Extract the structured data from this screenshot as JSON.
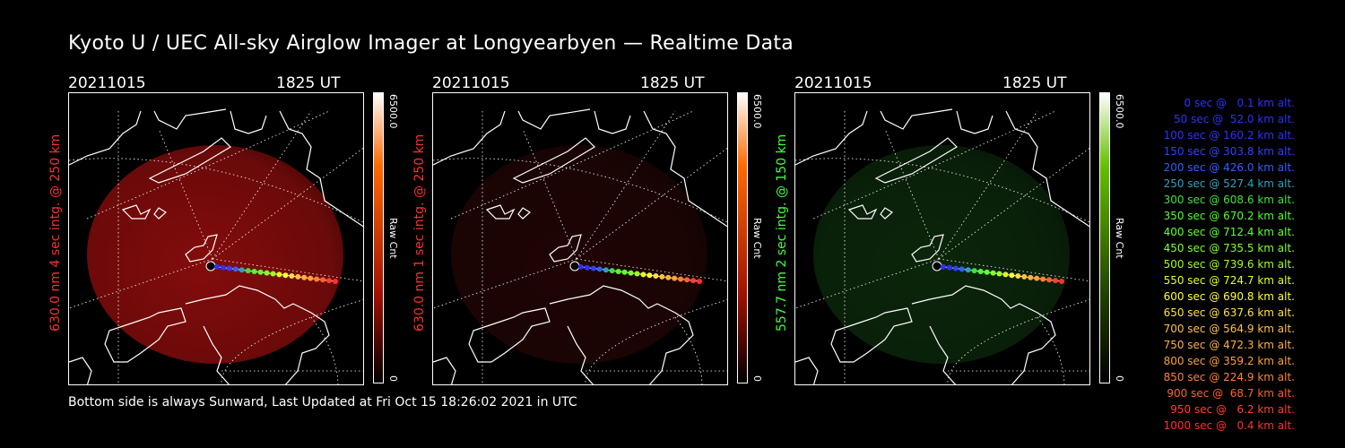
{
  "title": "Kyoto U / UEC All-sky Airglow Imager at Longyearbyen — Realtime Data",
  "footer": "Bottom side is always Sunward, Last Updated at Fri Oct 15 18:26:02 2021 in UTC",
  "panels": [
    {
      "date": "20211015",
      "time": "1825 UT",
      "ylabel": "630.0 nm 4 sec intg. @ 250 km",
      "label_color": "#ff3030",
      "cb_max": "6500.0",
      "cb_min": "0",
      "cb_label": "Raw Cnt",
      "cb_top": "#ffffff",
      "cb_mid": "#ff6a00",
      "cb_low": "#a01000",
      "glow_color": "#b01010",
      "glow_level": 0.75
    },
    {
      "date": "20211015",
      "time": "1825 UT",
      "ylabel": "630.0 nm 1 sec intg. @ 250 km",
      "label_color": "#ff3030",
      "cb_max": "6500.0",
      "cb_min": "0",
      "cb_label": "Raw Cnt",
      "cb_top": "#ffffff",
      "cb_mid": "#ff6a00",
      "cb_low": "#a01000",
      "glow_color": "#701010",
      "glow_level": 0.28
    },
    {
      "date": "20211015",
      "time": "1825 UT",
      "ylabel": "557.7 nm 2 sec intg. @ 150 km",
      "label_color": "#40ff40",
      "cb_max": "6500.0",
      "cb_min": "0",
      "cb_label": "Raw Cnt",
      "cb_top": "#ffffff",
      "cb_mid": "#66c000",
      "cb_low": "#204000",
      "glow_color": "#1a5a1a",
      "glow_level": 0.42
    }
  ],
  "legend": [
    {
      "text": "0 sec @   0.1 km alt.",
      "color": "#3030ff"
    },
    {
      "text": "50 sec @  52.0 km alt.",
      "color": "#3030ff"
    },
    {
      "text": "100 sec @ 160.2 km alt.",
      "color": "#3030ff"
    },
    {
      "text": "150 sec @ 303.8 km alt.",
      "color": "#3040ff"
    },
    {
      "text": "200 sec @ 426.0 km alt.",
      "color": "#3060ff"
    },
    {
      "text": "250 sec @ 527.4 km alt.",
      "color": "#30a0c0"
    },
    {
      "text": "300 sec @ 608.6 km alt.",
      "color": "#40e040"
    },
    {
      "text": "350 sec @ 670.2 km alt.",
      "color": "#50ff30"
    },
    {
      "text": "400 sec @ 712.4 km alt.",
      "color": "#60ff30"
    },
    {
      "text": "450 sec @ 735.5 km alt.",
      "color": "#80ff30"
    },
    {
      "text": "500 sec @ 739.6 km alt.",
      "color": "#a0ff20"
    },
    {
      "text": "550 sec @ 724.7 km alt.",
      "color": "#e0ff20"
    },
    {
      "text": "600 sec @ 690.8 km alt.",
      "color": "#ffff30"
    },
    {
      "text": "650 sec @ 637.6 km alt.",
      "color": "#ffe040"
    },
    {
      "text": "700 sec @ 564.9 km alt.",
      "color": "#ffc040"
    },
    {
      "text": "750 sec @ 472.3 km alt.",
      "color": "#ffb040"
    },
    {
      "text": "800 sec @ 359.2 km alt.",
      "color": "#ffa030"
    },
    {
      "text": "850 sec @ 224.9 km alt.",
      "color": "#ff8030"
    },
    {
      "text": "900 sec @  68.7 km alt.",
      "color": "#ff6030"
    },
    {
      "text": "950 sec @   6.2 km alt.",
      "color": "#ff4030"
    },
    {
      "text": "1000 sec @   0.4 km alt.",
      "color": "#ff3030"
    }
  ]
}
